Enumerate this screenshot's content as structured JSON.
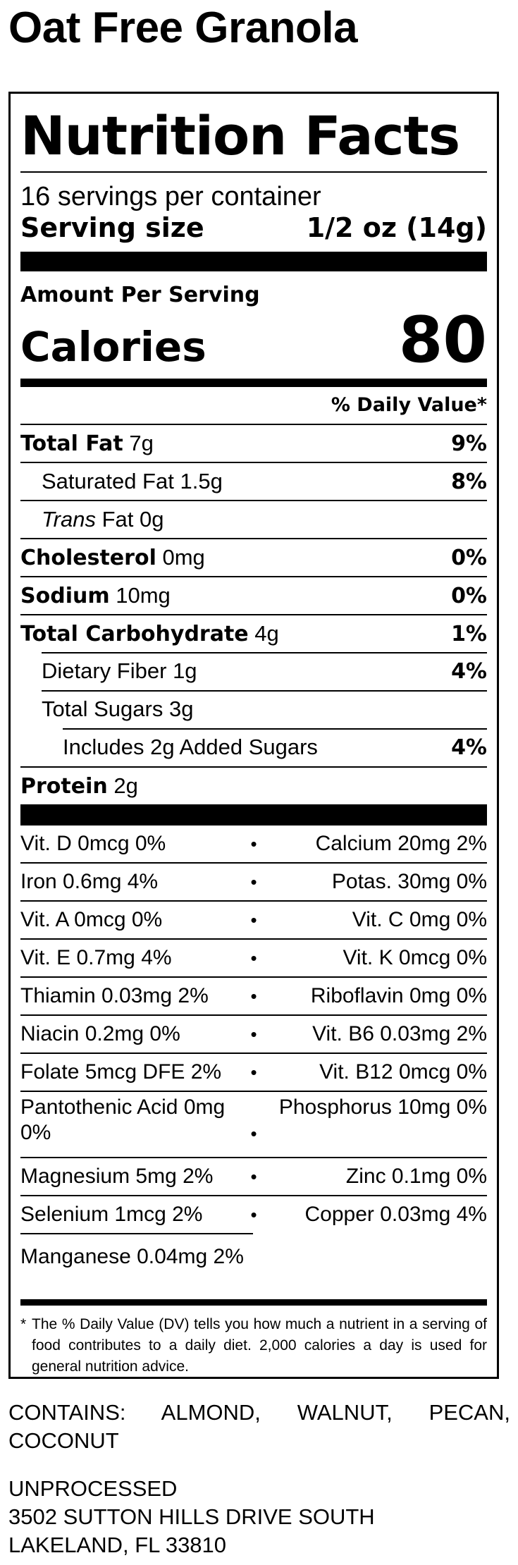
{
  "product": {
    "title": "Oat Free Granola"
  },
  "label": {
    "heading": "Nutrition Facts",
    "servings_per_container": "16 servings per container",
    "serving_size_label": "Serving size",
    "serving_size_value": "1/2 oz (14g)",
    "amount_per_serving": "Amount Per Serving",
    "calories_label": "Calories",
    "calories_value": "80",
    "dv_header": "% Daily Value*",
    "nutrients": [
      {
        "name": "Total Fat",
        "amount": "7g",
        "dv": "9%"
      },
      {
        "name": "Saturated Fat",
        "amount": "1.5g",
        "dv": "8%"
      },
      {
        "name": "Trans",
        "name2": "Fat",
        "amount": "0g",
        "dv": ""
      },
      {
        "name": "Cholesterol",
        "amount": "0mg",
        "dv": "0%"
      },
      {
        "name": "Sodium",
        "amount": "10mg",
        "dv": "0%"
      },
      {
        "name": "Total Carbohydrate",
        "amount": "4g",
        "dv": "1%"
      },
      {
        "name": "Dietary Fiber",
        "amount": "1g",
        "dv": "4%"
      },
      {
        "name": "Total Sugars",
        "amount": "3g",
        "dv": ""
      },
      {
        "name": "Includes 2g Added Sugars",
        "amount": "",
        "dv": "4%"
      },
      {
        "name": "Protein",
        "amount": "2g",
        "dv": ""
      }
    ],
    "vitamins": [
      {
        "left": "Vit. D 0mcg 0%",
        "right": "Calcium 20mg 2%"
      },
      {
        "left": "Iron 0.6mg 4%",
        "right": "Potas. 30mg 0%"
      },
      {
        "left": "Vit. A 0mcg 0%",
        "right": "Vit. C 0mg 0%"
      },
      {
        "left": "Vit. E 0.7mg 4%",
        "right": "Vit. K 0mcg 0%"
      },
      {
        "left": "Thiamin 0.03mg 2%",
        "right": "Riboflavin 0mg 0%"
      },
      {
        "left": "Niacin 0.2mg 0%",
        "right": "Vit. B6 0.03mg 2%"
      },
      {
        "left": "Folate 5mcg DFE 2%",
        "right": "Vit. B12 0mcg 0%"
      },
      {
        "left": "Pantothenic Acid 0mg 0%",
        "right": "Phosphorus 10mg 0%"
      },
      {
        "left": "Magnesium 5mg 2%",
        "right": "Zinc 0.1mg 0%"
      },
      {
        "left": "Selenium 1mcg 2%",
        "right": "Copper 0.03mg 4%"
      }
    ],
    "vitamin_last": "Manganese 0.04mg 2%",
    "separator": "•",
    "footnote_star": "*",
    "footnote": "The % Daily Value (DV) tells you how much a nutrient in a serving of food contributes to a daily diet. 2,000 calories a day is used for general nutrition advice."
  },
  "contains": "CONTAINS: ALMOND, WALNUT, PECAN, COCONUT",
  "company": {
    "name": "UNPROCESSED",
    "address1": "3502 SUTTON HILLS DRIVE SOUTH",
    "address2": "LAKELAND, FL 33810"
  }
}
